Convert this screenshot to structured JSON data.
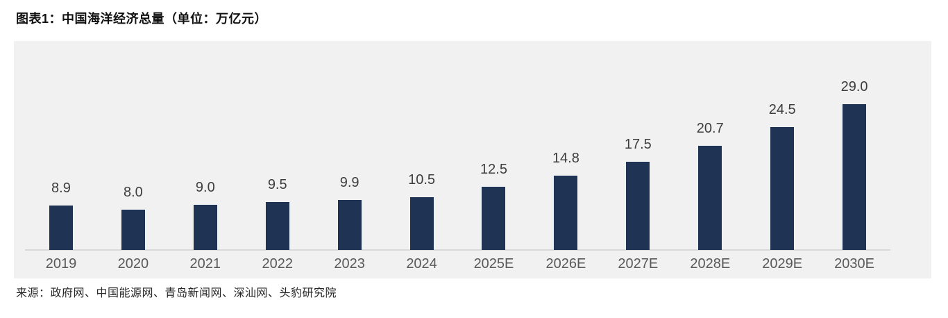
{
  "title": "图表1：中国海洋经济总量（单位：万亿元）",
  "source": "来源：政府网、中国能源网、青岛新闻网、深汕网、头豹研究院",
  "chart_data": {
    "type": "bar",
    "title": "中国海洋经济总量",
    "unit": "万亿元",
    "categories": [
      "2019",
      "2020",
      "2021",
      "2022",
      "2023",
      "2024",
      "2025E",
      "2026E",
      "2027E",
      "2028E",
      "2029E",
      "2030E"
    ],
    "values": [
      8.9,
      8.0,
      9.0,
      9.5,
      9.9,
      10.5,
      12.5,
      14.8,
      17.5,
      20.7,
      24.5,
      29.0
    ],
    "value_labels": [
      "8.9",
      "8.0",
      "9.0",
      "9.5",
      "9.9",
      "10.5",
      "12.5",
      "14.8",
      "17.5",
      "20.7",
      "24.5",
      "29.0"
    ],
    "xlabel": "",
    "ylabel": "",
    "ylim": [
      0,
      29
    ],
    "grid": false,
    "legend": "none",
    "data_labels": true,
    "bar_color": "#1f3355",
    "plot_background": "#f1f1f2",
    "axis_line_color": "#d9d9d9",
    "tick_label_color": "#595959",
    "value_label_color": "#3d3d3d"
  }
}
